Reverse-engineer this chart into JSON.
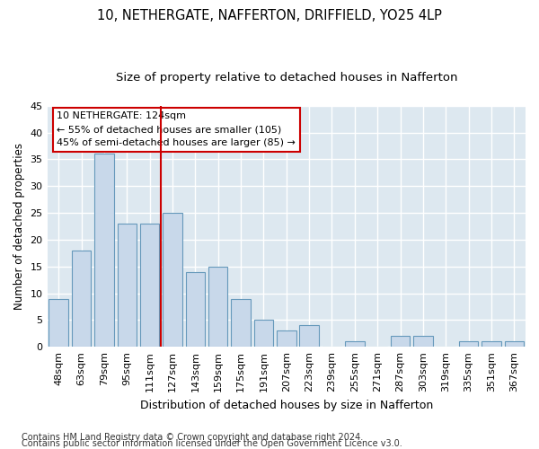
{
  "title": "10, NETHERGATE, NAFFERTON, DRIFFIELD, YO25 4LP",
  "subtitle": "Size of property relative to detached houses in Nafferton",
  "xlabel": "Distribution of detached houses by size in Nafferton",
  "ylabel": "Number of detached properties",
  "categories": [
    "48sqm",
    "63sqm",
    "79sqm",
    "95sqm",
    "111sqm",
    "127sqm",
    "143sqm",
    "159sqm",
    "175sqm",
    "191sqm",
    "207sqm",
    "223sqm",
    "239sqm",
    "255sqm",
    "271sqm",
    "287sqm",
    "303sqm",
    "319sqm",
    "335sqm",
    "351sqm",
    "367sqm"
  ],
  "values": [
    9,
    18,
    36,
    23,
    23,
    25,
    14,
    15,
    9,
    5,
    3,
    4,
    0,
    1,
    0,
    2,
    2,
    0,
    1,
    1,
    1
  ],
  "bar_color": "#c8d8ea",
  "bar_edgecolor": "#6699bb",
  "vline_index": 5,
  "vline_color": "#cc0000",
  "annotation_text": "10 NETHERGATE: 124sqm\n← 55% of detached houses are smaller (105)\n45% of semi-detached houses are larger (85) →",
  "annotation_box_facecolor": "#ffffff",
  "annotation_box_edgecolor": "#cc0000",
  "ylim": [
    0,
    45
  ],
  "yticks": [
    0,
    5,
    10,
    15,
    20,
    25,
    30,
    35,
    40,
    45
  ],
  "plot_bg_color": "#dde8f0",
  "grid_color": "#ffffff",
  "fig_bg_color": "#ffffff",
  "footer_line1": "Contains HM Land Registry data © Crown copyright and database right 2024.",
  "footer_line2": "Contains public sector information licensed under the Open Government Licence v3.0.",
  "title_fontsize": 10.5,
  "subtitle_fontsize": 9.5,
  "xlabel_fontsize": 9,
  "ylabel_fontsize": 8.5,
  "tick_fontsize": 8,
  "annotation_fontsize": 8,
  "footer_fontsize": 7
}
